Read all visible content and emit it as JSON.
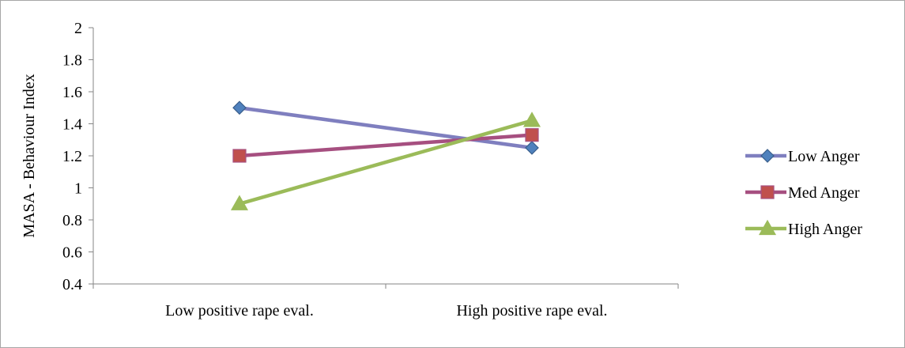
{
  "chart_data": {
    "type": "line",
    "title": "",
    "xlabel": "",
    "ylabel": "MASA - Behaviour Index",
    "categories": [
      "Low positive rape eval.",
      "High positive rape eval."
    ],
    "ylim": [
      0.4,
      2
    ],
    "yticks": [
      "0.4",
      "0.6",
      "0.8",
      "1",
      "1.2",
      "1.4",
      "1.6",
      "1.8",
      "2"
    ],
    "grid": false,
    "legend_position": "right",
    "series": [
      {
        "name": "Low Anger",
        "values": [
          1.5,
          1.25
        ],
        "color": "#7f7fbf",
        "marker_color": "#4f81bd",
        "marker": "diamond"
      },
      {
        "name": "Med Anger",
        "values": [
          1.2,
          1.33
        ],
        "color": "#a64f80",
        "marker_color": "#c0504d",
        "marker": "square"
      },
      {
        "name": "High Anger",
        "values": [
          0.9,
          1.42
        ],
        "color": "#9bbb59",
        "marker_color": "#9bbb59",
        "marker": "triangle"
      }
    ]
  }
}
